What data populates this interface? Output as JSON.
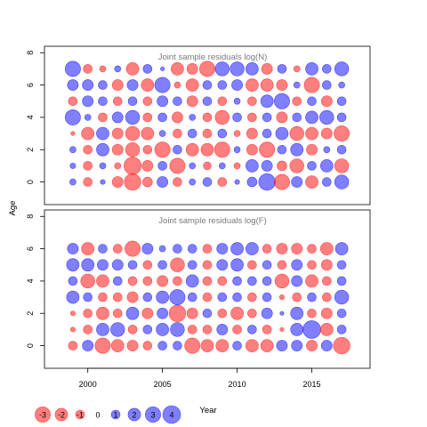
{
  "colors": {
    "negative": "#ff0000",
    "positive": "#0000ff",
    "frame": "#000000"
  },
  "chart_data": {
    "type": "scatter",
    "subtype": "bubble",
    "xlabel": "Year",
    "ylabel": "Age",
    "x": [
      1999,
      2000,
      2001,
      2002,
      2003,
      2004,
      2005,
      2006,
      2007,
      2008,
      2009,
      2010,
      2011,
      2012,
      2013,
      2014,
      2015,
      2016,
      2017
    ],
    "xlim": [
      1997.1,
      2018.9
    ],
    "x_ticks": [
      2000,
      2005,
      2010,
      2015
    ],
    "ylim": [
      -1.4,
      8.4
    ],
    "y_ticks": [
      0,
      2,
      4,
      6,
      8
    ],
    "panels": [
      {
        "title": "Joint sample residuals log(N)",
        "ages": [
          0,
          1,
          2,
          3,
          4,
          5,
          6,
          7
        ],
        "residuals": [
          [
            0.5,
            -1.0,
            0.3,
            -1.5,
            -3.5,
            -1.2,
            1.5,
            -1.0,
            0.5,
            1.0,
            -1.0,
            0.3,
            1.2,
            3.5,
            -3.0,
            1.5,
            -2.0,
            1.0,
            2.5
          ],
          [
            0.4,
            -1.0,
            0.5,
            -0.5,
            -3.8,
            -1.5,
            1.0,
            -3.0,
            0.5,
            -0.8,
            0.5,
            -0.5,
            2.0,
            1.5,
            -1.2,
            -2.5,
            1.0,
            2.0,
            -2.5
          ],
          [
            0.5,
            -1.0,
            2.0,
            -1.5,
            -2.5,
            -1.0,
            -3.0,
            1.0,
            -2.0,
            -2.0,
            -3.0,
            0.5,
            -1.5,
            -3.0,
            1.0,
            2.0,
            -1.5,
            0.5,
            1.0
          ],
          [
            -0.2,
            -2.0,
            2.0,
            -1.5,
            -2.5,
            -2.0,
            0.5,
            -1.0,
            1.0,
            -1.0,
            1.0,
            -0.5,
            -1.5,
            1.0,
            2.0,
            -2.5,
            -2.0,
            -1.5,
            -3.0
          ],
          [
            3.0,
            0.5,
            -1.0,
            1.5,
            2.5,
            -1.0,
            1.0,
            -1.5,
            0.5,
            -1.0,
            -2.5,
            1.0,
            -1.0,
            1.0,
            -1.5,
            1.0,
            2.0,
            2.5,
            1.0
          ],
          [
            -1.0,
            1.5,
            1.0,
            -1.0,
            1.0,
            -1.0,
            1.5,
            1.0,
            -1.5,
            1.0,
            -1.0,
            0.5,
            -1.0,
            2.0,
            3.0,
            -1.0,
            1.0,
            -1.5,
            1.0
          ],
          [
            1.5,
            1.5,
            1.0,
            -1.5,
            1.5,
            -2.0,
            3.0,
            -0.5,
            -2.0,
            1.0,
            1.0,
            1.5,
            -2.0,
            -2.0,
            -1.5,
            0.5,
            -3.0,
            1.0,
            0.5
          ],
          [
            3.0,
            -1.0,
            -0.5,
            0.5,
            -2.0,
            1.0,
            0.2,
            -2.0,
            -1.5,
            -3.0,
            2.5,
            2.5,
            2.0,
            -1.5,
            1.0,
            -0.5,
            2.0,
            1.0,
            2.5
          ]
        ]
      },
      {
        "title": "Joint sample residuals log(F)",
        "ages": [
          0,
          1,
          2,
          3,
          4,
          5,
          6
        ],
        "residuals": [
          [
            -1.0,
            1.5,
            -3.0,
            -2.0,
            -1.5,
            -1.0,
            1.0,
            1.0,
            -3.0,
            -2.0,
            -2.0,
            1.0,
            -2.0,
            -2.0,
            1.5,
            1.5,
            -1.5,
            1.5,
            -3.5
          ],
          [
            -0.3,
            -1.0,
            2.0,
            2.5,
            -1.0,
            1.0,
            2.0,
            2.5,
            -1.0,
            -1.0,
            1.5,
            -1.0,
            1.0,
            -1.0,
            -0.2,
            2.0,
            4.0,
            -2.0,
            1.0
          ],
          [
            -0.3,
            -1.0,
            -2.0,
            -1.0,
            2.0,
            -1.5,
            1.5,
            -3.5,
            -1.5,
            1.0,
            -1.0,
            -2.0,
            -1.0,
            1.5,
            0.2,
            2.0,
            -1.0,
            -1.5,
            1.0
          ],
          [
            2.0,
            1.0,
            -1.0,
            -1.0,
            -1.5,
            1.0,
            2.0,
            3.0,
            1.0,
            -1.0,
            1.0,
            1.0,
            -1.0,
            1.0,
            -0.3,
            -1.0,
            1.0,
            -1.0,
            2.5
          ],
          [
            1.0,
            -2.5,
            -2.0,
            1.0,
            -1.0,
            -1.0,
            -1.5,
            -1.0,
            2.0,
            -1.0,
            -1.0,
            1.0,
            1.0,
            1.0,
            -2.5,
            1.5,
            -2.0,
            -1.0,
            1.0
          ],
          [
            2.0,
            2.0,
            1.5,
            1.5,
            1.0,
            -1.0,
            1.0,
            -2.5,
            1.0,
            -1.0,
            1.5,
            2.0,
            -1.0,
            1.0,
            -1.0,
            1.5,
            -1.0,
            -1.5,
            1.0
          ],
          [
            1.5,
            -2.0,
            1.0,
            -1.0,
            -3.0,
            1.5,
            0.5,
            1.0,
            1.0,
            -1.0,
            1.5,
            2.0,
            2.0,
            -1.0,
            -1.5,
            -1.5,
            -1.0,
            -2.0,
            2.0
          ]
        ]
      }
    ],
    "legend": {
      "placement": "bottom",
      "values": [
        -3,
        -2,
        -1,
        0,
        1,
        2,
        3,
        4
      ],
      "labels": [
        "-3",
        "-2",
        "-1",
        "0",
        "1",
        "2",
        "3",
        "4"
      ]
    }
  }
}
